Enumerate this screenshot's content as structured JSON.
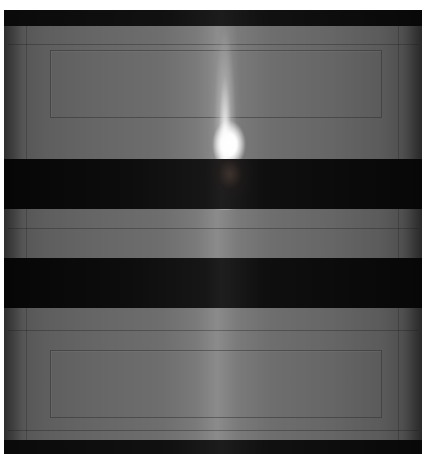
{
  "image": {
    "subject": "",
    "colors": {
      "body": "#6a6a6a",
      "band": "#0d0d0d",
      "highlight": "#ffffff",
      "background": "#ffffff"
    }
  }
}
